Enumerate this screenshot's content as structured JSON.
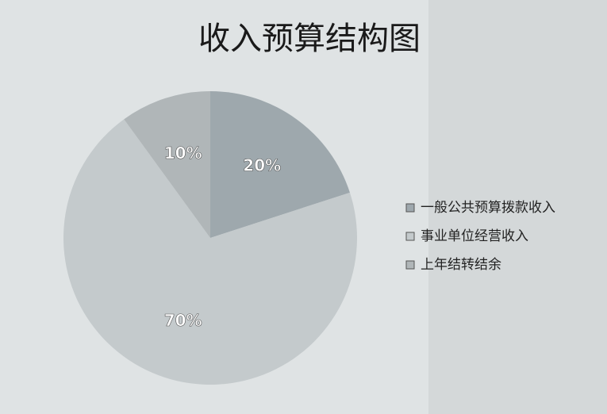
{
  "chart_data": {
    "type": "pie",
    "title": "收入预算结构图",
    "categories": [
      "一般公共预算拨款收入",
      "事业单位经营收入",
      "上年结转结余"
    ],
    "values": [
      20,
      70,
      10
    ],
    "value_labels": [
      "20%",
      "70%",
      "10%"
    ],
    "colors": [
      "#9ea8ad",
      "#c4cacc",
      "#b0b6b8"
    ],
    "legend": "right"
  }
}
